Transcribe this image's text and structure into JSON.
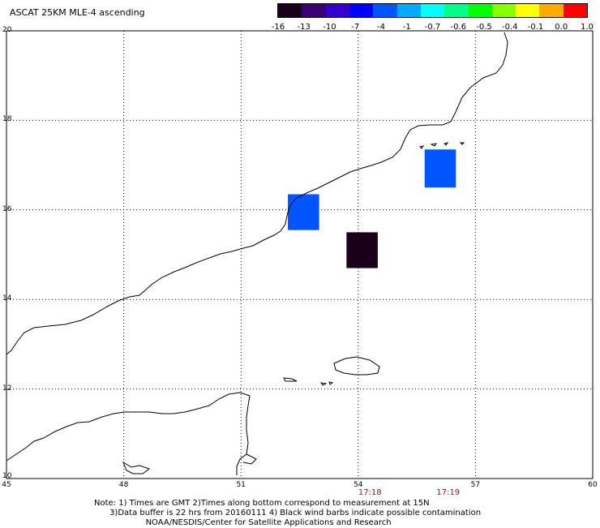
{
  "title": "ASCAT 25KM MLE-4 ascending",
  "colorbar": {
    "labels": [
      "-16",
      "-13",
      "-10",
      "-7",
      "-4",
      "-1",
      "-0.7",
      "-0.6",
      "-0.5",
      "-0.4",
      "-0.1",
      "0.0",
      "1.0"
    ],
    "colors": [
      "#1a0018",
      "#3a0070",
      "#3300cc",
      "#0000ff",
      "#0055ff",
      "#00aaff",
      "#00ffff",
      "#00ff88",
      "#00ff00",
      "#88ff00",
      "#ffff00",
      "#ffaa00",
      "#ff0000"
    ]
  },
  "map": {
    "lat_labels": [
      "20",
      "18",
      "16",
      "14",
      "12",
      "10"
    ],
    "lon_labels": [
      "45",
      "48",
      "51",
      "54",
      "57",
      "60"
    ],
    "lon_range": [
      45,
      60
    ],
    "lat_range": [
      10,
      20
    ],
    "cells": [
      {
        "lon_min": 52.2,
        "lon_max": 53.0,
        "lat_min": 15.55,
        "lat_max": 16.35,
        "color": "#0055ff"
      },
      {
        "lon_min": 53.7,
        "lon_max": 54.5,
        "lat_min": 14.7,
        "lat_max": 15.5,
        "color": "#1a0018"
      },
      {
        "lon_min": 55.7,
        "lon_max": 56.5,
        "lat_min": 16.5,
        "lat_max": 17.35,
        "color": "#0055ff"
      }
    ]
  },
  "times": [
    {
      "label": "17:18",
      "lon": 54.3
    },
    {
      "label": "17:19",
      "lon": 56.3
    }
  ],
  "notes": [
    "Note: 1) Times are GMT 2)Times along bottom correspond to measurement at 15N",
    "      3)Data buffer is 22 hrs from 20160111 4) Black wind barbs indicate possible contamination",
    "                    NOAA/NESDIS/Center for Satellite Applications and Research"
  ]
}
